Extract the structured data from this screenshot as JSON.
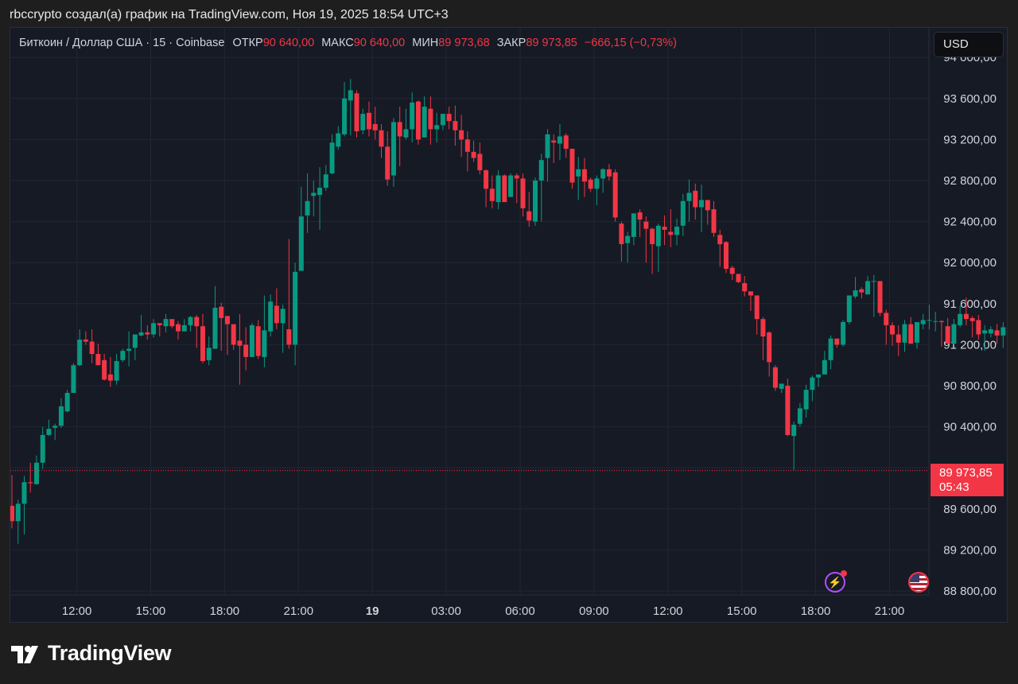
{
  "header": {
    "caption": "rbccrypto создал(а) график на TradingView.com, Ноя 19, 2025 18:54 UTC+3"
  },
  "legend": {
    "symbol": "Биткоин / Доллар США · 15 · Coinbase",
    "open_label": "ОТКР",
    "open_value": "90 640,00",
    "high_label": "МАКС",
    "high_value": "90 640,00",
    "low_label": "МИН",
    "low_value": "89 973,68",
    "close_label": "ЗАКР",
    "close_value": "89 973,85",
    "change": "−666,15 (−0,73%)"
  },
  "currency_button": "USD",
  "last_price": {
    "value": "89 973,85",
    "countdown": "05:43"
  },
  "brand": "TradingView",
  "icons": {
    "bolt": "lightning-icon",
    "flag": "us-flag-icon",
    "logo": "tradingview-logo-icon"
  },
  "colors": {
    "up": "#089981",
    "down": "#f23645",
    "background": "#161a25"
  },
  "chart_data": {
    "type": "candlestick",
    "timeframe": "15",
    "y_range": [
      88800,
      94000
    ],
    "y_ticks": [
      88800,
      89200,
      89600,
      90000,
      90400,
      90800,
      91200,
      91600,
      92000,
      92400,
      92800,
      93200,
      93600,
      94000
    ],
    "y_tick_labels": [
      "88 800,00",
      "89 200,00",
      "89 600,00",
      "",
      "90 400,00",
      "90 800,00",
      "91 200,00",
      "91 600,00",
      "92 000,00",
      "92 400,00",
      "92 800,00",
      "93 200,00",
      "93 600,00",
      "94 000,00"
    ],
    "x_labels": [
      {
        "t": 0,
        "label": "12:00"
      },
      {
        "t": 3,
        "label": "15:00"
      },
      {
        "t": 6,
        "label": "18:00"
      },
      {
        "t": 9,
        "label": "21:00"
      },
      {
        "t": 12,
        "label": "19",
        "bold": true
      },
      {
        "t": 15,
        "label": "03:00"
      },
      {
        "t": 18,
        "label": "06:00"
      },
      {
        "t": 21,
        "label": "09:00"
      },
      {
        "t": 24,
        "label": "12:00"
      },
      {
        "t": 27,
        "label": "15:00"
      },
      {
        "t": 30,
        "label": "18:00"
      },
      {
        "t": 33,
        "label": "21:00"
      }
    ],
    "x_range": [
      -2.7,
      34.6
    ],
    "last_price": 89973.85,
    "candles": [
      [
        89630,
        89480,
        89930,
        89410
      ],
      [
        89480,
        89650,
        89690,
        89260
      ],
      [
        89650,
        89860,
        89920,
        89350
      ],
      [
        89860,
        89850,
        90050,
        89760
      ],
      [
        89840,
        90050,
        90120,
        89840
      ],
      [
        90050,
        90320,
        90400,
        89990
      ],
      [
        90320,
        90380,
        90470,
        90310
      ],
      [
        90390,
        90410,
        90430,
        90270
      ],
      [
        90410,
        90600,
        90680,
        90390
      ],
      [
        90550,
        90730,
        90760,
        90540
      ],
      [
        90730,
        91000,
        91020,
        90730
      ],
      [
        91000,
        91250,
        91350,
        90990
      ],
      [
        91250,
        91230,
        91330,
        91200
      ],
      [
        91230,
        91110,
        91350,
        91020
      ],
      [
        91110,
        91000,
        91210,
        91000
      ],
      [
        91050,
        90860,
        91110,
        90850
      ],
      [
        90910,
        90850,
        91080,
        90790
      ],
      [
        90850,
        91040,
        91110,
        90810
      ],
      [
        91050,
        91140,
        91160,
        91030
      ],
      [
        91140,
        91160,
        91330,
        90990
      ],
      [
        91170,
        91300,
        91300,
        91050
      ],
      [
        91290,
        91320,
        91490,
        91280
      ],
      [
        91320,
        91300,
        91390,
        91250
      ],
      [
        91300,
        91410,
        91450,
        91270
      ],
      [
        91410,
        91390,
        91410,
        91280
      ],
      [
        91380,
        91450,
        91500,
        91320
      ],
      [
        91450,
        91380,
        91440,
        91360
      ],
      [
        91400,
        91330,
        91430,
        91250
      ],
      [
        91330,
        91390,
        91450,
        91330
      ],
      [
        91390,
        91470,
        91480,
        91330
      ],
      [
        91470,
        91380,
        91490,
        91170
      ],
      [
        91380,
        91040,
        91500,
        91020
      ],
      [
        91050,
        91170,
        91280,
        91000
      ],
      [
        91160,
        91560,
        91770,
        91160
      ],
      [
        91570,
        91460,
        91610,
        91140
      ],
      [
        91480,
        91400,
        91480,
        91100
      ],
      [
        91400,
        91200,
        91400,
        91150
      ],
      [
        91240,
        91190,
        91500,
        90810
      ],
      [
        91200,
        91080,
        91370,
        90950
      ],
      [
        91080,
        91390,
        91410,
        91080
      ],
      [
        91380,
        91090,
        91440,
        91060
      ],
      [
        91080,
        91340,
        91680,
        90980
      ],
      [
        91330,
        91620,
        91690,
        91280
      ],
      [
        91580,
        91410,
        91750,
        91350
      ],
      [
        91410,
        91550,
        91590,
        91120
      ],
      [
        91350,
        91200,
        92230,
        91160
      ],
      [
        91200,
        91910,
        92000,
        91000
      ],
      [
        91920,
        92450,
        92740,
        91920
      ],
      [
        92460,
        92600,
        92870,
        92290
      ],
      [
        92650,
        92680,
        92800,
        92450
      ],
      [
        92660,
        92730,
        92930,
        92320
      ],
      [
        92730,
        92860,
        92950,
        92700
      ],
      [
        92870,
        93170,
        93250,
        92860
      ],
      [
        93130,
        93260,
        93330,
        93100
      ],
      [
        93250,
        93600,
        93760,
        93230
      ],
      [
        93580,
        93680,
        93790,
        93240
      ],
      [
        93650,
        93280,
        93680,
        93220
      ],
      [
        93290,
        93450,
        93500,
        93250
      ],
      [
        93460,
        93300,
        93570,
        93230
      ],
      [
        93350,
        93290,
        93520,
        93200
      ],
      [
        93290,
        93130,
        93350,
        93020
      ],
      [
        93130,
        92810,
        93280,
        92750
      ],
      [
        92850,
        93370,
        93410,
        92740
      ],
      [
        93370,
        93230,
        93520,
        92940
      ],
      [
        93220,
        93300,
        93500,
        93200
      ],
      [
        93300,
        93560,
        93660,
        93170
      ],
      [
        93570,
        93200,
        93580,
        93150
      ],
      [
        93220,
        93520,
        93620,
        93220
      ],
      [
        93500,
        93300,
        93620,
        93150
      ],
      [
        93300,
        93340,
        93460,
        93170
      ],
      [
        93340,
        93450,
        93450,
        93290
      ],
      [
        93450,
        93380,
        93520,
        93300
      ],
      [
        93380,
        93290,
        93530,
        93140
      ],
      [
        93290,
        93200,
        93440,
        93030
      ],
      [
        93200,
        93080,
        93280,
        92890
      ],
      [
        93080,
        93020,
        93190,
        92980
      ],
      [
        93060,
        92900,
        93170,
        92860
      ],
      [
        92900,
        92720,
        92910,
        92540
      ],
      [
        92720,
        92600,
        92850,
        92530
      ],
      [
        92590,
        92850,
        92900,
        92520
      ],
      [
        92850,
        92590,
        92860,
        92590
      ],
      [
        92640,
        92850,
        92870,
        92650
      ],
      [
        92850,
        92820,
        92870,
        92580
      ],
      [
        92820,
        92530,
        92870,
        92450
      ],
      [
        92500,
        92410,
        92690,
        92350
      ],
      [
        92400,
        92800,
        92830,
        92360
      ],
      [
        92800,
        93000,
        93060,
        92400
      ],
      [
        93020,
        93250,
        93300,
        92790
      ],
      [
        93190,
        93170,
        93250,
        92970
      ],
      [
        93160,
        93230,
        93350,
        93000
      ],
      [
        93240,
        93110,
        93260,
        93020
      ],
      [
        93110,
        92780,
        93100,
        92720
      ],
      [
        92840,
        92910,
        93030,
        92610
      ],
      [
        92910,
        92790,
        93020,
        92640
      ],
      [
        92810,
        92720,
        92830,
        92690
      ],
      [
        92720,
        92820,
        92850,
        92560
      ],
      [
        92820,
        92910,
        92920,
        92680
      ],
      [
        92910,
        92840,
        92960,
        92800
      ],
      [
        92880,
        92440,
        92910,
        92400
      ],
      [
        92380,
        92180,
        92400,
        92010
      ],
      [
        92190,
        92260,
        92300,
        92000
      ],
      [
        92250,
        92480,
        92470,
        92170
      ],
      [
        92490,
        92420,
        92520,
        92250
      ],
      [
        92400,
        92330,
        92450,
        92000
      ],
      [
        92330,
        92180,
        92340,
        91890
      ],
      [
        92160,
        92360,
        92380,
        91910
      ],
      [
        92350,
        92320,
        92460,
        92170
      ],
      [
        92300,
        92270,
        92520,
        92150
      ],
      [
        92270,
        92350,
        92430,
        92170
      ],
      [
        92360,
        92600,
        92670,
        92260
      ],
      [
        92600,
        92680,
        92810,
        92400
      ],
      [
        92700,
        92540,
        92770,
        92420
      ],
      [
        92540,
        92610,
        92760,
        92300
      ],
      [
        92610,
        92510,
        92560,
        92370
      ],
      [
        92520,
        92290,
        92600,
        92250
      ],
      [
        92270,
        92180,
        92320,
        91960
      ],
      [
        92200,
        91940,
        92210,
        91900
      ],
      [
        91950,
        91890,
        91970,
        91830
      ],
      [
        91890,
        91810,
        91880,
        91800
      ],
      [
        91800,
        91720,
        91870,
        91670
      ],
      [
        91720,
        91680,
        91690,
        91530
      ],
      [
        91680,
        91450,
        91660,
        91300
      ],
      [
        91450,
        91280,
        91470,
        91050
      ],
      [
        91320,
        91030,
        91330,
        90890
      ],
      [
        90980,
        90780,
        91000,
        90750
      ],
      [
        90770,
        90820,
        90820,
        90730
      ],
      [
        90800,
        90320,
        90870,
        90310
      ],
      [
        90310,
        90420,
        90450,
        89980
      ],
      [
        90430,
        90580,
        90630,
        90400
      ],
      [
        90570,
        90760,
        90810,
        90490
      ],
      [
        90760,
        90880,
        90900,
        90650
      ],
      [
        90880,
        90910,
        90910,
        90790
      ],
      [
        90910,
        91050,
        91140,
        90920
      ],
      [
        91050,
        91260,
        91290,
        90960
      ],
      [
        91260,
        91200,
        91230,
        91170
      ],
      [
        91200,
        91420,
        91440,
        91180
      ],
      [
        91420,
        91680,
        91680,
        91400
      ],
      [
        91670,
        91730,
        91860,
        91650
      ],
      [
        91740,
        91710,
        91760,
        91650
      ],
      [
        91690,
        91820,
        91870,
        91690
      ],
      [
        91820,
        91820,
        91880,
        91470
      ],
      [
        91820,
        91510,
        91610,
        91480
      ],
      [
        91510,
        91390,
        91540,
        91200
      ],
      [
        91390,
        91300,
        91420,
        91190
      ],
      [
        91300,
        91220,
        91390,
        91090
      ],
      [
        91220,
        91400,
        91440,
        91130
      ],
      [
        91400,
        91210,
        91470,
        91210
      ],
      [
        91220,
        91420,
        91420,
        91160
      ],
      [
        91400,
        91440,
        91500,
        91350
      ],
      [
        91440,
        91440,
        91590,
        91350
      ],
      [
        91430,
        91430,
        91520,
        91330
      ],
      [
        91430,
        91420,
        91440,
        91180
      ],
      [
        91380,
        91210,
        91460,
        91220
      ],
      [
        91210,
        91400,
        91450,
        91200
      ],
      [
        91390,
        91500,
        91580,
        91370
      ],
      [
        91500,
        91450,
        91660,
        91390
      ],
      [
        91460,
        91430,
        91480,
        91270
      ],
      [
        91440,
        91300,
        91490,
        91250
      ],
      [
        91310,
        91340,
        91390,
        91140
      ],
      [
        91310,
        91350,
        91380,
        91270
      ],
      [
        91340,
        91290,
        91400,
        91210
      ],
      [
        91290,
        91370,
        91420,
        91170
      ],
      [
        91370,
        91670,
        91810,
        91340
      ],
      [
        91670,
        91630,
        91710,
        91500
      ],
      [
        91630,
        91530,
        91760,
        91470
      ],
      [
        91530,
        91670,
        91800,
        91490
      ],
      [
        91670,
        91330,
        91680,
        91310
      ],
      [
        91340,
        91410,
        91530,
        91260
      ],
      [
        91400,
        91320,
        91430,
        91300
      ],
      [
        91330,
        91120,
        91440,
        91060
      ],
      [
        91110,
        91150,
        91550,
        91020
      ],
      [
        91160,
        91700,
        91760,
        91090
      ],
      [
        91700,
        91640,
        91830,
        91600
      ],
      [
        91640,
        91950,
        92270,
        91580
      ],
      [
        91950,
        91260,
        91970,
        91190
      ],
      [
        91250,
        90740,
        91260,
        90640
      ],
      [
        90640,
        89970,
        90640,
        89970
      ]
    ]
  }
}
